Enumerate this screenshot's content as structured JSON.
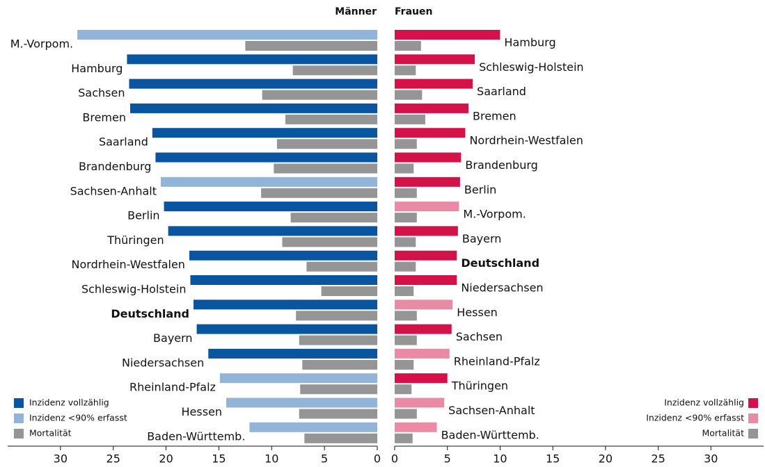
{
  "chart_data": [
    {
      "type": "bar",
      "title": "Männer",
      "x_reversed": true,
      "legend": "bottom left",
      "highlight_index": 11,
      "categories": [
        "M.-Vorpom.",
        "Hamburg",
        "Sachsen",
        "Bremen",
        "Saarland",
        "Brandenburg",
        "Sachsen-Anhalt",
        "Berlin",
        "Thüringen",
        "Nordrhein-Westfalen",
        "Schleswig-Holstein",
        "Deutschland",
        "Bayern",
        "Niedersachsen",
        "Rheinland-Pfalz",
        "Hessen",
        "Baden-Württemb."
      ],
      "series": [
        {
          "name": "Inzidenz vollzählig",
          "color": "#0a55a0",
          "values": [
            null,
            23.7,
            23.5,
            23.4,
            21.3,
            21.0,
            null,
            20.2,
            19.8,
            17.8,
            17.7,
            17.4,
            17.1,
            16.0,
            null,
            null,
            null
          ]
        },
        {
          "name": "Inzidenz <90% erfasst",
          "color": "#91b4d7",
          "values": [
            28.4,
            null,
            null,
            null,
            null,
            null,
            20.5,
            null,
            null,
            null,
            null,
            null,
            null,
            null,
            14.9,
            14.3,
            12.1
          ]
        },
        {
          "name": "Mortalität",
          "color": "#959595",
          "values": [
            12.5,
            8.0,
            10.9,
            8.7,
            9.5,
            9.8,
            11.0,
            8.2,
            9.0,
            6.7,
            5.3,
            7.7,
            7.4,
            7.1,
            7.3,
            7.4,
            6.9
          ]
        }
      ],
      "xlim": [
        0,
        35
      ],
      "xticks": [
        0,
        5,
        10,
        15,
        20,
        25,
        30
      ]
    },
    {
      "type": "bar",
      "title": "Frauen",
      "x_reversed": false,
      "legend": "bottom right",
      "highlight_index": 9,
      "categories": [
        "Hamburg",
        "Schleswig-Holstein",
        "Saarland",
        "Bremen",
        "Nordrhein-Westfalen",
        "Brandenburg",
        "Berlin",
        "M.-Vorpom.",
        "Bayern",
        "Deutschland",
        "Niedersachsen",
        "Hessen",
        "Sachsen",
        "Rheinland-Pfalz",
        "Thüringen",
        "Sachsen-Anhalt",
        "Baden-Württemb."
      ],
      "series": [
        {
          "name": "Inzidenz vollzählig",
          "color": "#d4124a",
          "values": [
            10.0,
            7.6,
            7.4,
            7.0,
            6.7,
            6.3,
            6.2,
            null,
            6.0,
            5.9,
            5.9,
            null,
            5.4,
            null,
            5.0,
            null,
            null
          ]
        },
        {
          "name": "Inzidenz <90% erfasst",
          "color": "#e98ba5",
          "values": [
            null,
            null,
            null,
            null,
            null,
            null,
            null,
            6.1,
            null,
            null,
            null,
            5.5,
            null,
            5.2,
            null,
            4.7,
            4.0
          ]
        },
        {
          "name": "Mortalität",
          "color": "#959595",
          "values": [
            2.5,
            2.0,
            2.6,
            2.9,
            2.1,
            1.8,
            2.1,
            2.1,
            2.0,
            2.0,
            1.8,
            2.1,
            2.1,
            1.8,
            1.6,
            2.1,
            1.7
          ]
        }
      ],
      "xlim": [
        0,
        35
      ],
      "xticks": [
        0,
        5,
        10,
        15,
        20,
        25,
        30
      ]
    }
  ]
}
